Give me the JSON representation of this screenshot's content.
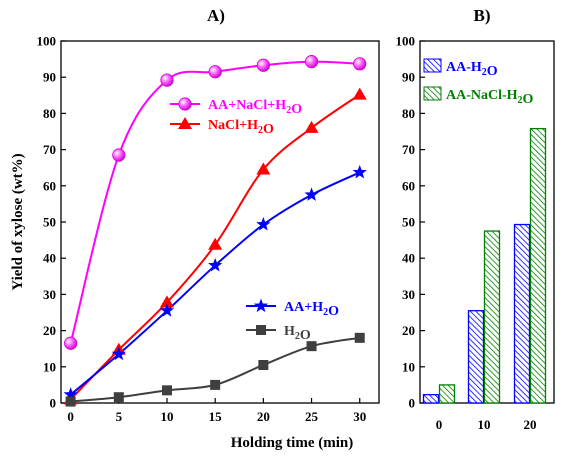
{
  "chart_data": [
    {
      "type": "line",
      "panel_label": "A)",
      "xlabel": "Holding time (min)",
      "ylabel": "Yield of xylose (wt%)",
      "xlim": [
        -1,
        32
      ],
      "ylim": [
        0,
        100
      ],
      "xticks": [
        0,
        5,
        10,
        15,
        20,
        25,
        30
      ],
      "yticks": [
        0,
        10,
        20,
        30,
        40,
        50,
        60,
        70,
        80,
        90,
        100
      ],
      "grid": false,
      "x": [
        0,
        5,
        10,
        15,
        20,
        25,
        30
      ],
      "series": [
        {
          "name": "AA+NaCl+H2O",
          "color": "#ff00ff",
          "marker": "sphere",
          "values": [
            16.5,
            68.5,
            89.2,
            91.5,
            93.3,
            94.3,
            93.7
          ]
        },
        {
          "name": "NaCl+H2O",
          "color": "#ff0000",
          "marker": "triangle",
          "values": [
            1.0,
            14.7,
            27.8,
            43.7,
            64.5,
            76.0,
            85.2
          ]
        },
        {
          "name": "AA+H2O",
          "color": "#0000ff",
          "marker": "star",
          "values": [
            2.3,
            13.5,
            25.5,
            38.0,
            49.3,
            57.5,
            63.7
          ]
        },
        {
          "name": "H2O",
          "color": "#3f3f3f",
          "marker": "square",
          "values": [
            0.4,
            1.6,
            3.5,
            5.0,
            10.5,
            15.7,
            18.0
          ]
        }
      ]
    },
    {
      "type": "bar",
      "panel_label": "B)",
      "ylim": [
        0,
        100
      ],
      "yticks": [
        0,
        10,
        20,
        30,
        40,
        50,
        60,
        70,
        80,
        90,
        100
      ],
      "categories": [
        "0",
        "10",
        "20"
      ],
      "grid": false,
      "series": [
        {
          "name": "AA-H2O",
          "color": "#0000ff",
          "hatch": "diagonal",
          "values": [
            2.3,
            25.5,
            49.3
          ]
        },
        {
          "name": "AA-NaCl-H2O",
          "color": "#008000",
          "hatch": "diagonal",
          "values": [
            5.0,
            47.5,
            75.8
          ]
        }
      ]
    }
  ]
}
